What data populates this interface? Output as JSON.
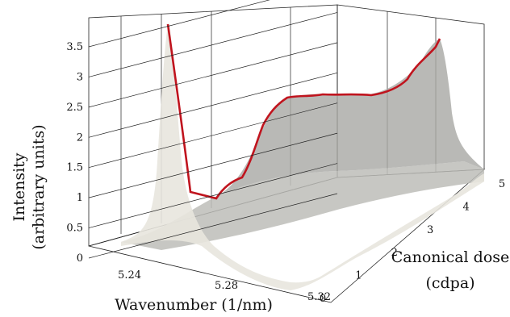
{
  "chart_data": {
    "type": "surface-3d",
    "z_axis": {
      "title_line1": "Intensity",
      "title_line2": "(arbitrary units)",
      "ticks": [
        "0",
        "0.5",
        "1",
        "1.5",
        "2",
        "2.5",
        "3",
        "3.5"
      ],
      "range": [
        0,
        3.9
      ]
    },
    "x_axis": {
      "title": "Wavenumber (1/nm)",
      "ticks": [
        "5.24",
        "5.28",
        "5.32"
      ],
      "range": [
        5.22,
        5.33
      ]
    },
    "y_axis": {
      "title_line1": "Canonical dose",
      "title_line2": "(cdpa)",
      "ticks": [
        "0",
        "1",
        "2",
        "3",
        "4",
        "5"
      ],
      "range": [
        0,
        5
      ]
    },
    "surface_color": "#c8c8c4",
    "highlight_color": "#c0141e",
    "highlight_curve": {
      "description_x": "wavenumber",
      "x": [
        5.233,
        5.24,
        5.25,
        5.256,
        5.258,
        5.262,
        5.266,
        5.27,
        5.275,
        5.28,
        5.285,
        5.29,
        5.295,
        5.3,
        5.305,
        5.31,
        5.315,
        5.32,
        5.325
      ],
      "intensity": [
        3.95,
        3.0,
        1.2,
        1.02,
        0.95,
        1.0,
        1.35,
        1.9,
        2.5,
        2.75,
        2.85,
        2.9,
        2.95,
        2.95,
        3.0,
        3.05,
        3.15,
        3.3,
        3.7
      ]
    },
    "dose_peak": {
      "wavenumber": 5.233,
      "intensity_at_dose0": 3.95
    }
  }
}
